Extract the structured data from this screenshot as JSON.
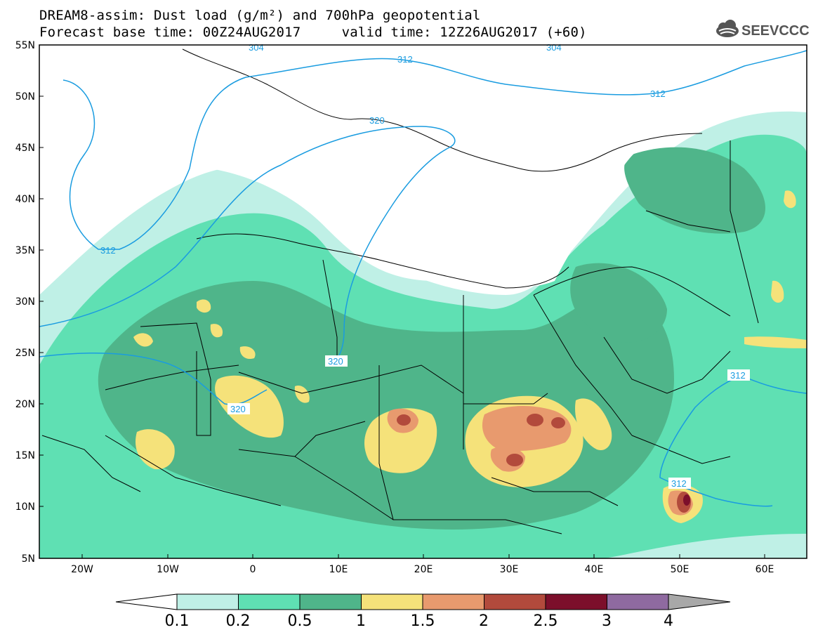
{
  "header": {
    "title_line1": "DREAM8-assim: Dust load (g/m²) and 700hPa geopotential",
    "title_line2": "Forecast base time: 00Z24AUG2017     valid time: 12Z26AUG2017 (+60)",
    "logo_text": "SEEVCCC"
  },
  "map": {
    "lat_labels": [
      "55N",
      "50N",
      "45N",
      "40N",
      "35N",
      "30N",
      "25N",
      "20N",
      "15N",
      "10N",
      "5N"
    ],
    "lon_labels": [
      "20W",
      "10W",
      "0",
      "10E",
      "20E",
      "30E",
      "40E",
      "50E",
      "60E"
    ],
    "contour_labels": [
      "304",
      "312",
      "320",
      "304",
      "312",
      "312",
      "320",
      "320",
      "312",
      "312"
    ]
  },
  "colorbar": {
    "levels": [
      "0.1",
      "0.2",
      "0.5",
      "1",
      "1.5",
      "2",
      "2.5",
      "3",
      "4"
    ],
    "colors": [
      "#bff0e6",
      "#5fe0b3",
      "#4fb58a",
      "#f5e27a",
      "#e89a6e",
      "#b24a3c",
      "#7c0f2b",
      "#8f6aa0",
      "#a8a8a8"
    ]
  }
}
